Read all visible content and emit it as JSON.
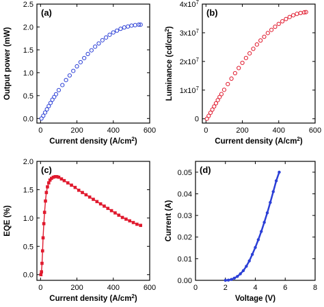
{
  "chart_data": [
    {
      "id": "a",
      "type": "scatter",
      "panel_label": "(a)",
      "xlabel": "Current density (A/cm",
      "xlabel_sup": "2",
      "xlabel_suffix": ")",
      "ylabel": "Output power (mW)",
      "xlim": [
        -20,
        600
      ],
      "ylim": [
        -0.1,
        2.5
      ],
      "xticks": [
        0,
        200,
        400,
        600
      ],
      "xtick_labels": [
        "0",
        "200",
        "400",
        "600"
      ],
      "yticks": [
        0.0,
        0.5,
        1.0,
        1.5,
        2.0,
        2.5
      ],
      "ytick_labels": [
        "0.0",
        "0.5",
        "1.0",
        "1.5",
        "2.0",
        "2.5"
      ],
      "marker": "open-circle",
      "color": "#2b3fd6",
      "series": [
        {
          "x": [
            5,
            15,
            25,
            35,
            45,
            55,
            65,
            75,
            85,
            100,
            120,
            140,
            160,
            180,
            200,
            220,
            240,
            260,
            280,
            300,
            320,
            340,
            360,
            380,
            400,
            420,
            440,
            460,
            480,
            500,
            520,
            540,
            550
          ],
          "values": [
            0.0,
            0.06,
            0.13,
            0.2,
            0.27,
            0.34,
            0.41,
            0.47,
            0.53,
            0.62,
            0.73,
            0.84,
            0.94,
            1.04,
            1.14,
            1.23,
            1.32,
            1.41,
            1.49,
            1.57,
            1.64,
            1.71,
            1.77,
            1.83,
            1.88,
            1.92,
            1.96,
            1.99,
            2.01,
            2.03,
            2.04,
            2.05,
            2.05
          ]
        }
      ]
    },
    {
      "id": "b",
      "type": "scatter",
      "panel_label": "(b)",
      "xlabel": "Current density (A/cm",
      "xlabel_sup": "2",
      "xlabel_suffix": ")",
      "ylabel": "Luminance (cd/cm",
      "ylabel_sup": "2",
      "ylabel_suffix": ")",
      "xlim": [
        -20,
        600
      ],
      "ylim": [
        -1500000,
        40000000
      ],
      "xticks": [
        0,
        200,
        400,
        600
      ],
      "xtick_labels": [
        "0",
        "200",
        "400",
        "600"
      ],
      "yticks": [
        0,
        10000000,
        20000000,
        30000000,
        40000000
      ],
      "ytick_labels": [
        {
          "base": "0",
          "exp": ""
        },
        {
          "base": "1x10",
          "exp": "7"
        },
        {
          "base": "2x10",
          "exp": "7"
        },
        {
          "base": "3x10",
          "exp": "7"
        },
        {
          "base": "4x10",
          "exp": "7"
        }
      ],
      "marker": "open-circle",
      "color": "#e0192d",
      "series": [
        {
          "x": [
            5,
            15,
            25,
            35,
            45,
            55,
            65,
            75,
            85,
            100,
            120,
            140,
            160,
            180,
            200,
            220,
            240,
            260,
            280,
            300,
            320,
            340,
            360,
            380,
            400,
            420,
            440,
            460,
            480,
            500,
            520,
            540,
            550
          ],
          "values": [
            0,
            1000000,
            2100000,
            3200000,
            4300000,
            5400000,
            6500000,
            7600000,
            8600000,
            10100000,
            12100000,
            14000000,
            15900000,
            17700000,
            19500000,
            21200000,
            22800000,
            24400000,
            25900000,
            27300000,
            28600000,
            29900000,
            31000000,
            32100000,
            33100000,
            34000000,
            34800000,
            35500000,
            36100000,
            36600000,
            36900000,
            37100000,
            37200000
          ]
        }
      ]
    },
    {
      "id": "c",
      "type": "line",
      "panel_label": "(c)",
      "xlabel": "Current density (A/cm",
      "xlabel_sup": "2",
      "xlabel_suffix": ")",
      "ylabel": "EQE (%)",
      "xlim": [
        -20,
        600
      ],
      "ylim": [
        -0.1,
        2.0
      ],
      "xticks": [
        0,
        200,
        400,
        600
      ],
      "xtick_labels": [
        "0",
        "200",
        "400",
        "600"
      ],
      "yticks": [
        0.0,
        0.5,
        1.0,
        1.5,
        2.0
      ],
      "ytick_labels": [
        "0.0",
        "0.5",
        "1.0",
        "1.5",
        "2.0"
      ],
      "marker": "filled-square",
      "color": "#e0192d",
      "series": [
        {
          "x": [
            2,
            5,
            8,
            11,
            14,
            18,
            22,
            27,
            32,
            38,
            45,
            52,
            60,
            70,
            80,
            90,
            100,
            115,
            130,
            150,
            170,
            190,
            210,
            230,
            250,
            270,
            290,
            310,
            330,
            350,
            370,
            390,
            410,
            430,
            450,
            470,
            490,
            510,
            530,
            550
          ],
          "values": [
            0.0,
            0.05,
            0.2,
            0.42,
            0.65,
            0.9,
            1.1,
            1.3,
            1.45,
            1.55,
            1.62,
            1.67,
            1.7,
            1.72,
            1.73,
            1.73,
            1.72,
            1.69,
            1.66,
            1.62,
            1.58,
            1.54,
            1.49,
            1.45,
            1.41,
            1.37,
            1.33,
            1.29,
            1.25,
            1.21,
            1.17,
            1.13,
            1.09,
            1.05,
            1.01,
            0.98,
            0.95,
            0.92,
            0.89,
            0.87
          ]
        }
      ]
    },
    {
      "id": "d",
      "type": "line",
      "panel_label": "(d)",
      "xlabel": "Voltage (V)",
      "ylabel": "Current (A)",
      "xlim": [
        0,
        8
      ],
      "ylim": [
        0,
        0.055
      ],
      "xticks": [
        0,
        2,
        4,
        6,
        8
      ],
      "xtick_labels": [
        "0",
        "2",
        "4",
        "6",
        "8"
      ],
      "yticks": [
        0.0,
        0.01,
        0.02,
        0.03,
        0.04,
        0.05
      ],
      "ytick_labels": [
        "0.00",
        "0.01",
        "0.02",
        "0.03",
        "0.04",
        "0.05"
      ],
      "marker": "filled-circle",
      "color": "#2b3fd6",
      "series": [
        {
          "x": [
            2.0,
            2.2,
            2.4,
            2.6,
            2.8,
            3.0,
            3.2,
            3.4,
            3.6,
            3.8,
            4.0,
            4.2,
            4.4,
            4.6,
            4.8,
            5.0,
            5.2,
            5.4,
            5.6
          ],
          "values": [
            0.0,
            0.0001,
            0.0004,
            0.001,
            0.0018,
            0.003,
            0.0045,
            0.0065,
            0.009,
            0.012,
            0.0152,
            0.0188,
            0.0226,
            0.0268,
            0.0312,
            0.036,
            0.041,
            0.046,
            0.05
          ]
        }
      ]
    }
  ]
}
